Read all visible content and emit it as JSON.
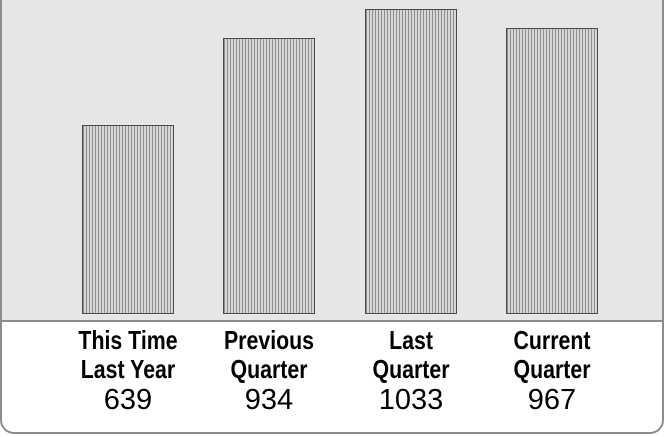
{
  "chart_data": {
    "type": "bar",
    "categories": [
      [
        "This Time",
        "Last Year"
      ],
      [
        "Previous",
        "Quarter"
      ],
      [
        "Last",
        "Quarter"
      ],
      [
        "Current",
        "Quarter"
      ]
    ],
    "values": [
      639,
      934,
      1033,
      967
    ],
    "value_labels": [
      "639",
      "934",
      "1033",
      "967"
    ],
    "title": "",
    "xlabel": "",
    "ylabel": "",
    "ylim": [
      0,
      1100
    ],
    "grid": false,
    "legend": "none"
  },
  "colors": {
    "plot_background": "#e6e6e6",
    "bar_fill": "#c4c4c4",
    "bar_hatch": "#8e8e8e",
    "bar_border": "#4a4a4a",
    "frame": "#8c8c8c"
  }
}
